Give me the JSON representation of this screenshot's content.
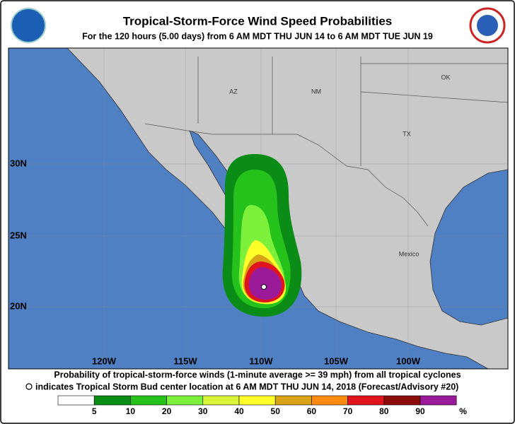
{
  "header": {
    "title": "Tropical-Storm-Force Wind Speed Probabilities",
    "subtitle": "For the 120 hours (5.00 days) from 6 AM MDT THU JUN 14 to 6 AM MDT TUE JUN 19"
  },
  "map": {
    "lat_labels": [
      "30N",
      "25N",
      "20N"
    ],
    "lon_labels": [
      "120W",
      "115W",
      "110W",
      "105W",
      "100W"
    ],
    "place_labels": [
      "AZ",
      "NM",
      "OK",
      "TX",
      "Mexico"
    ]
  },
  "caption": [
    "Probability of tropical-storm-force winds (1-minute average >= 39 mph) from all tropical cyclones",
    "indicates Tropical Storm Bud center location at 6 AM MDT THU JUN 14, 2018 (Forecast/Advisory #20)"
  ],
  "legend": {
    "colors": [
      "#ffffff",
      "#0a8c16",
      "#25c21b",
      "#7cf03a",
      "#d8f53a",
      "#ffff2a",
      "#d9a317",
      "#ff8a10",
      "#e0141c",
      "#8c0a0a",
      "#9b1a9a"
    ],
    "ticks": [
      5,
      10,
      20,
      30,
      40,
      50,
      60,
      70,
      80,
      90
    ],
    "unit": "%"
  }
}
